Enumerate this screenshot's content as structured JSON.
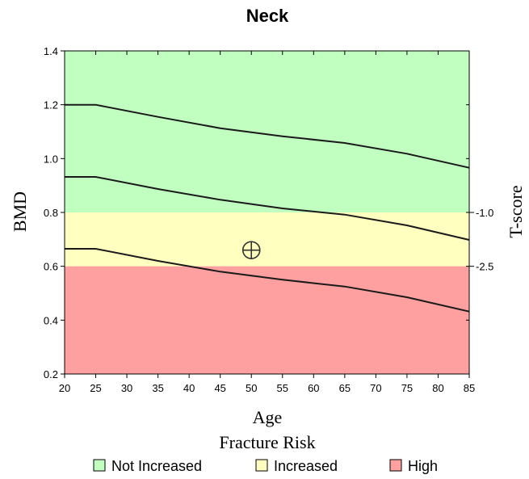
{
  "chart_data": {
    "type": "line",
    "title": "Neck",
    "xlabel": "Age",
    "ylabel": "BMD",
    "y2label": "T-score",
    "xlim": [
      20,
      85
    ],
    "ylim": [
      0.2,
      1.4
    ],
    "x_ticks": [
      20,
      25,
      30,
      35,
      40,
      45,
      50,
      55,
      60,
      65,
      70,
      75,
      80,
      85
    ],
    "y_ticks": [
      "0.2",
      "0.4",
      "0.6",
      "0.8",
      "1.0",
      "1.2",
      "1.4"
    ],
    "y2_ticks": [
      {
        "label": "-1.0",
        "bmd": 0.8
      },
      {
        "label": "-2.5",
        "bmd": 0.6
      }
    ],
    "regions": [
      {
        "name": "Not Increased",
        "from": 0.8,
        "to": 1.4,
        "color": "#c0ffc0"
      },
      {
        "name": "Increased",
        "from": 0.6,
        "to": 0.8,
        "color": "#ffffc0"
      },
      {
        "name": "High",
        "from": 0.2,
        "to": 0.6,
        "color": "#ffa0a0"
      }
    ],
    "series": [
      {
        "x": [
          20,
          25,
          35,
          45,
          55,
          65,
          75,
          85
        ],
        "values": [
          1.2,
          1.2,
          1.155,
          1.113,
          1.083,
          1.058,
          1.018,
          0.966
        ]
      },
      {
        "x": [
          20,
          25,
          35,
          45,
          55,
          65,
          75,
          85
        ],
        "values": [
          0.932,
          0.932,
          0.887,
          0.847,
          0.815,
          0.792,
          0.752,
          0.698
        ]
      },
      {
        "x": [
          20,
          25,
          35,
          45,
          55,
          65,
          75,
          85
        ],
        "values": [
          0.665,
          0.665,
          0.62,
          0.58,
          0.55,
          0.525,
          0.485,
          0.432
        ]
      }
    ],
    "patient_point": {
      "x": 50,
      "y": 0.66
    },
    "legend_title": "Fracture Risk",
    "legend_position": "bottom",
    "grid": false
  },
  "colors": {
    "line": "#1a1a1a",
    "axis": "#000000",
    "marker": "#333333"
  },
  "icons": {
    "patient_marker": "crosshair-circle-icon"
  }
}
